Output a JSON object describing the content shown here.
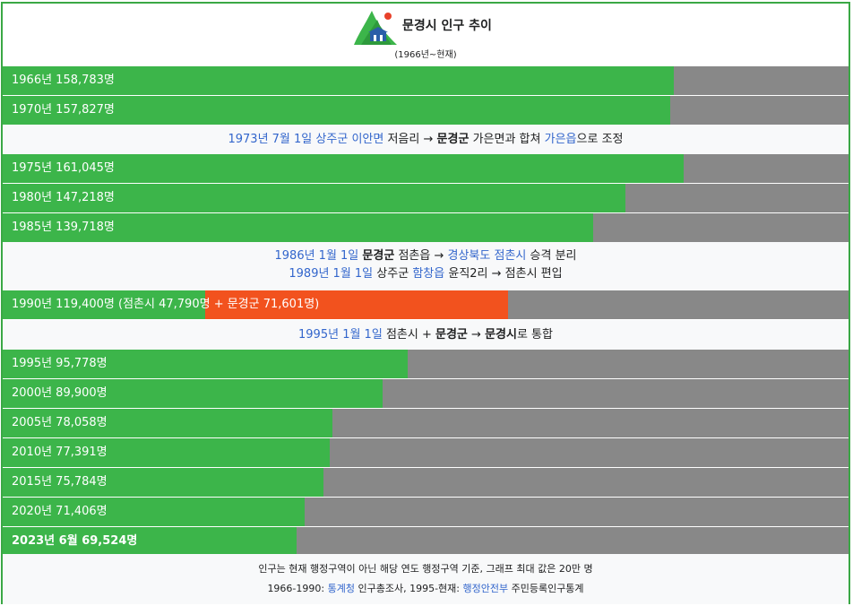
{
  "header": {
    "title": "문경시 인구 추이",
    "subtitle": "(1966년~현재)"
  },
  "colors": {
    "bar_fill": "#3cb54a",
    "bar_secondary": "#f2521e",
    "bar_background": "#888888",
    "link": "#3366cc",
    "border": "#3aa845"
  },
  "chart_data": {
    "type": "bar",
    "orientation": "horizontal",
    "xlim": [
      0,
      200000
    ],
    "categories": [
      "1966년",
      "1970년",
      "1975년",
      "1980년",
      "1985년",
      "1990년",
      "1995년",
      "2000년",
      "2005년",
      "2010년",
      "2015년",
      "2020년",
      "2023년 6월"
    ],
    "series": [
      {
        "values": [
          158783,
          157827,
          161045,
          147218,
          139718,
          47790,
          95778,
          89900,
          78058,
          77391,
          75784,
          71406,
          69524
        ]
      },
      {
        "values": [
          0,
          0,
          0,
          0,
          0,
          71601,
          0,
          0,
          0,
          0,
          0,
          0,
          0
        ]
      }
    ],
    "labels": [
      "1966년 158,783명",
      "1970년 157,827명",
      "1975년 161,045명",
      "1980년 147,218명",
      "1985년 139,718명",
      "1990년 119,400명 (점촌시 47,790명 + 문경군 71,601명)",
      "1995년 95,778명",
      "2000년 89,900명",
      "2005년 78,058명",
      "2010년 77,391명",
      "2015년 75,784명",
      "2020년 71,406명",
      "2023년 6월 69,524명"
    ]
  },
  "notes": {
    "n1": {
      "date": "1973년 7월 1일",
      "county": "상주군",
      "district": "이안면",
      "village": "저음리",
      "arrow": "→",
      "target": "문경군",
      "rest": "가은면과 합쳐",
      "town": "가은읍",
      "suffix": "으로 조정"
    },
    "n2": {
      "date": "1986년 1월 1일",
      "county": "문경군",
      "mid": "점촌읍 →",
      "province": "경상북도",
      "city": "점촌시",
      "suffix": "승격 분리"
    },
    "n3": {
      "date": "1989년 1월 1일",
      "mid": "상주군",
      "town": "함창읍",
      "suffix": "윤직2리 → 점촌시 편입"
    },
    "n4": {
      "date": "1995년 1월 1일",
      "mid": "점촌시 +",
      "county": "문경군",
      "arrow": "→",
      "city": "문경시",
      "suffix": "로 통합"
    }
  },
  "footer": {
    "line1": "인구는 현재 행정구역이 아닌 해당 연도 행정구역 기준, 그래프 최대 값은 20만 명",
    "line2_a": "1966-1990: ",
    "line2_link1": "통계청",
    "line2_b": " 인구총조사, 1995-현재: ",
    "line2_link2": "행정안전부",
    "line2_c": " 주민등록인구통계"
  }
}
